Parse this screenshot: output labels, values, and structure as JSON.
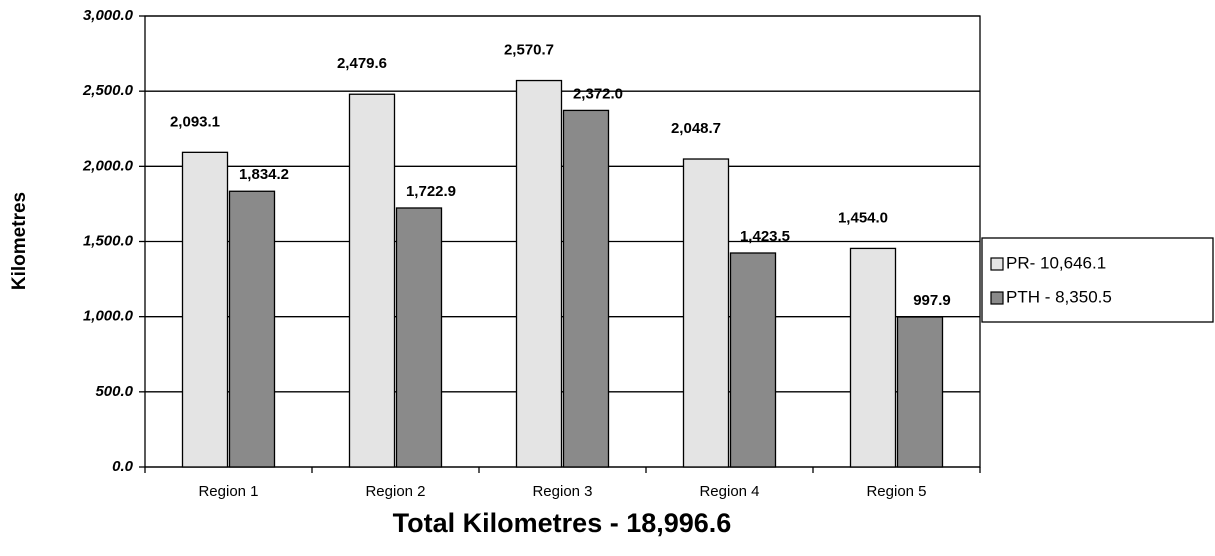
{
  "chart_data": {
    "type": "bar",
    "xlabel": "Total Kilometres - 18,996.6",
    "ylabel": "Kilometres",
    "categories": [
      "Region 1",
      "Region 2",
      "Region 3",
      "Region 4",
      "Region 5"
    ],
    "series": [
      {
        "name": "PR- 10,646.1",
        "color": "#e4e4e4",
        "values": [
          2093.1,
          2479.6,
          2570.7,
          2048.7,
          1454.0
        ],
        "value_labels": [
          "2,093.1",
          "2,479.6",
          "2,570.7",
          "2,048.7",
          "1,454.0"
        ]
      },
      {
        "name": "PTH - 8,350.5",
        "color": "#8a8a8a",
        "values": [
          1834.2,
          1722.9,
          2372.0,
          1423.5,
          997.9
        ],
        "value_labels": [
          "1,834.2",
          "1,722.9",
          "2,372.0",
          "1,423.5",
          "997.9"
        ]
      }
    ],
    "ylim": [
      0,
      3000
    ],
    "yticks": [
      {
        "value": 0,
        "label": "0.0"
      },
      {
        "value": 500,
        "label": "500.0"
      },
      {
        "value": 1000,
        "label": "1,000.0"
      },
      {
        "value": 1500,
        "label": "1,500.0"
      },
      {
        "value": 2000,
        "label": "2,000.0"
      },
      {
        "value": 2500,
        "label": "2,500.0"
      },
      {
        "value": 3000,
        "label": "3,000.0"
      }
    ],
    "grid": true,
    "legend": "right"
  }
}
